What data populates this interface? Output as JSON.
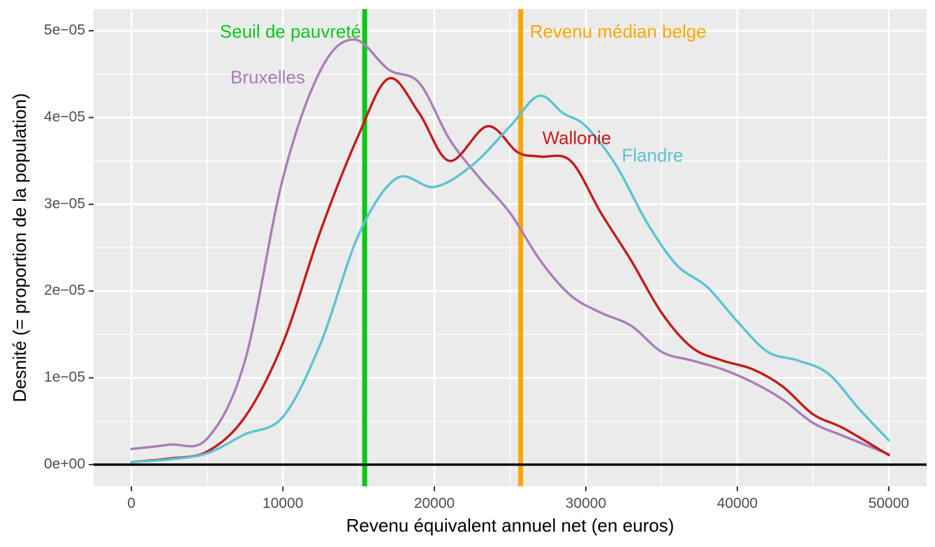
{
  "chart_data": {
    "type": "line",
    "title": "",
    "xlabel": "Revenu équivalent annuel net (en euros)",
    "ylabel": "Desnité (= proportion de la population)",
    "xlim": [
      -2500,
      52500
    ],
    "ylim": [
      -2.5e-06,
      5.25e-05
    ],
    "x_ticks": [
      0,
      10000,
      20000,
      30000,
      40000,
      50000
    ],
    "x_tick_labels": [
      "0",
      "10000",
      "20000",
      "30000",
      "40000",
      "50000"
    ],
    "y_ticks": [
      0,
      1e-05,
      2e-05,
      3e-05,
      4e-05,
      5e-05
    ],
    "y_tick_labels": [
      "0e+00",
      "1e−05",
      "2e−05",
      "3e−05",
      "4e−05",
      "5e−05"
    ],
    "grid": true,
    "legend": "none",
    "background": "#ebebeb",
    "series": [
      {
        "name": "Bruxelles",
        "color": "#a97db8",
        "x": [
          0,
          2500,
          5000,
          7500,
          10000,
          12500,
          14700,
          17000,
          19000,
          21000,
          23000,
          25000,
          27000,
          29000,
          31000,
          33000,
          35000,
          37000,
          39000,
          41000,
          43000,
          45000,
          47000,
          50000
        ],
        "y": [
          1.8e-06,
          2.3e-06,
          3e-06,
          1.2e-05,
          3.3e-05,
          4.55e-05,
          4.9e-05,
          4.55e-05,
          4.4e-05,
          3.75e-05,
          3.3e-05,
          2.9e-05,
          2.35e-05,
          1.95e-05,
          1.75e-05,
          1.6e-05,
          1.3e-05,
          1.2e-05,
          1.1e-05,
          9.5e-06,
          7.5e-06,
          4.8e-06,
          3.3e-06,
          1.2e-06
        ]
      },
      {
        "name": "Wallonie",
        "color": "#c41a1a",
        "x": [
          0,
          2500,
          5000,
          7500,
          10000,
          12500,
          15000,
          17000,
          19000,
          21000,
          23500,
          25500,
          27000,
          29000,
          31000,
          33000,
          35000,
          37000,
          39000,
          41000,
          43000,
          45000,
          47000,
          50000
        ],
        "y": [
          3e-07,
          7e-07,
          1.5e-06,
          5.5e-06,
          1.4e-05,
          2.7e-05,
          3.8e-05,
          4.45e-05,
          4.05e-05,
          3.5e-05,
          3.9e-05,
          3.6e-05,
          3.55e-05,
          3.5e-05,
          2.9e-05,
          2.35e-05,
          1.75e-05,
          1.35e-05,
          1.2e-05,
          1.1e-05,
          9e-06,
          5.8e-06,
          4.2e-06,
          1.1e-06
        ]
      },
      {
        "name": "Flandre",
        "color": "#5bc3d3",
        "x": [
          0,
          2500,
          5000,
          7500,
          10000,
          12500,
          15000,
          17500,
          20000,
          22500,
          25000,
          26900,
          28500,
          30000,
          32000,
          34000,
          36000,
          38000,
          40000,
          42000,
          44000,
          46000,
          48000,
          50000
        ],
        "y": [
          3e-07,
          6e-07,
          1.3e-06,
          3.5e-06,
          5.5e-06,
          1.4e-05,
          2.65e-05,
          3.3e-05,
          3.2e-05,
          3.45e-05,
          3.9e-05,
          4.25e-05,
          4.05e-05,
          3.9e-05,
          3.45e-05,
          2.8e-05,
          2.3e-05,
          2.05e-05,
          1.65e-05,
          1.3e-05,
          1.2e-05,
          1.05e-05,
          6.5e-06,
          2.8e-06
        ]
      }
    ],
    "vlines": [
      {
        "label": "Seuil de pauvreté",
        "x": 15400,
        "color": "#0cc61a"
      },
      {
        "label": "Revenu médian belge",
        "x": 25700,
        "color": "#ffa500"
      }
    ],
    "hline": {
      "y": 0,
      "color": "#000000"
    },
    "annotations": [
      {
        "text": "Seuil de pauvreté",
        "x": 10500,
        "y": 4.975e-05,
        "color": "#0cc61a",
        "anchor": "middle"
      },
      {
        "text": "Revenu médian belge",
        "x": 26300,
        "y": 4.975e-05,
        "color": "#ffa500",
        "anchor": "start"
      },
      {
        "text": "Bruxelles",
        "x": 9000,
        "y": 4.45e-05,
        "color": "#a97db8",
        "anchor": "middle"
      },
      {
        "text": "Wallonie",
        "x": 29400,
        "y": 3.75e-05,
        "color": "#c41a1a",
        "anchor": "middle"
      },
      {
        "text": "Flandre",
        "x": 34400,
        "y": 3.55e-05,
        "color": "#5bc3d3",
        "anchor": "middle"
      }
    ]
  }
}
